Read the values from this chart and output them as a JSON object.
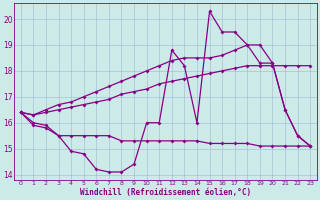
{
  "hours": [
    0,
    1,
    2,
    3,
    4,
    5,
    6,
    7,
    8,
    9,
    10,
    11,
    12,
    13,
    14,
    15,
    16,
    17,
    18,
    19,
    20,
    21,
    22,
    23
  ],
  "zigzag": [
    16.4,
    16.0,
    15.9,
    15.5,
    14.9,
    14.8,
    14.2,
    14.1,
    14.1,
    14.4,
    16.0,
    16.0,
    18.8,
    18.2,
    16.0,
    20.3,
    19.5,
    19.5,
    19.0,
    18.3,
    18.3,
    16.5,
    15.5,
    15.1
  ],
  "flat_low": [
    16.4,
    15.9,
    15.8,
    15.5,
    15.5,
    15.5,
    15.5,
    15.5,
    15.3,
    15.3,
    15.3,
    15.3,
    15.3,
    15.3,
    15.3,
    15.2,
    15.2,
    15.2,
    15.2,
    15.1,
    15.1,
    15.1,
    15.1,
    15.1
  ],
  "diag_low": [
    16.4,
    16.3,
    16.4,
    16.5,
    16.6,
    16.7,
    16.8,
    16.9,
    17.1,
    17.2,
    17.3,
    17.5,
    17.6,
    17.7,
    17.8,
    17.9,
    18.0,
    18.1,
    18.2,
    18.2,
    18.2,
    18.2,
    18.2,
    18.2
  ],
  "diag_high": [
    16.4,
    16.3,
    16.5,
    16.7,
    16.8,
    17.0,
    17.2,
    17.4,
    17.6,
    17.8,
    18.0,
    18.2,
    18.4,
    18.5,
    18.5,
    18.5,
    18.6,
    18.8,
    19.0,
    19.0,
    18.3,
    16.5,
    15.5,
    15.1
  ],
  "ylim": [
    13.8,
    20.6
  ],
  "xlim": [
    -0.5,
    23.5
  ],
  "yticks": [
    14,
    15,
    16,
    17,
    18,
    19,
    20
  ],
  "xticks": [
    0,
    1,
    2,
    3,
    4,
    5,
    6,
    7,
    8,
    9,
    10,
    11,
    12,
    13,
    14,
    15,
    16,
    17,
    18,
    19,
    20,
    21,
    22,
    23
  ],
  "bg_color": "#cceae7",
  "line_color": "#880088",
  "grid_color": "#99aacc",
  "xlabel": "Windchill (Refroidissement éolien,°C)"
}
